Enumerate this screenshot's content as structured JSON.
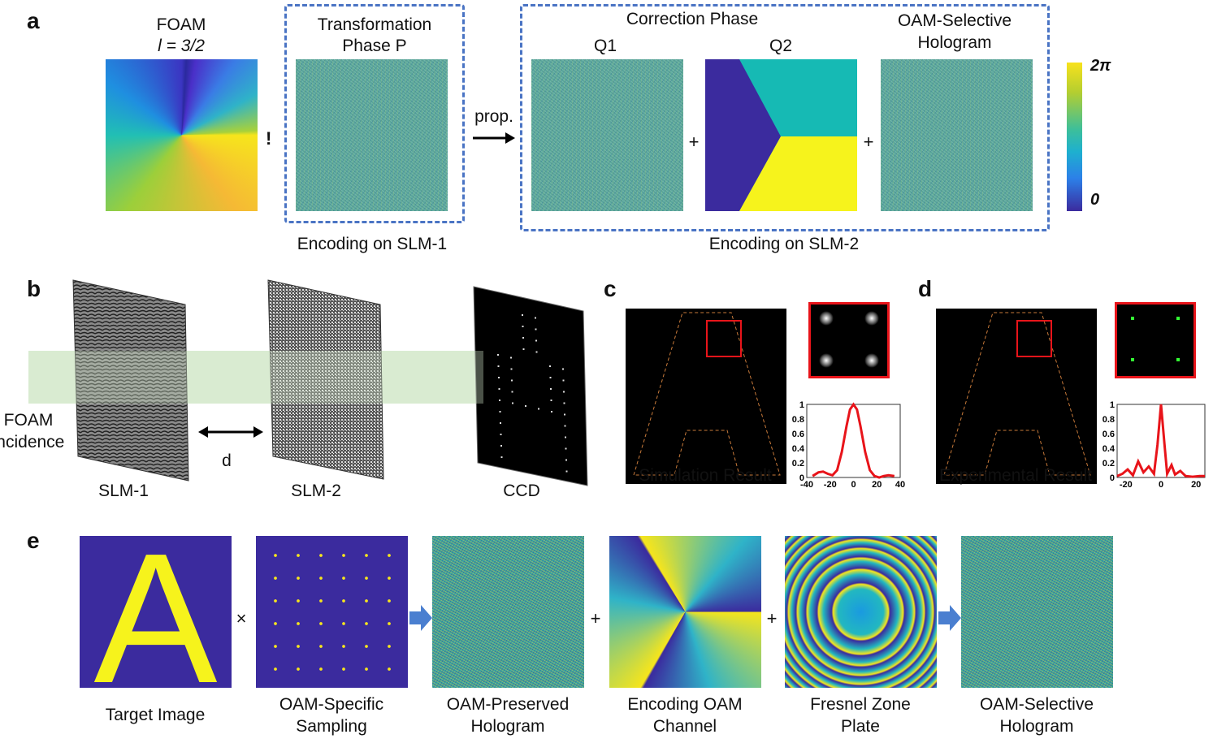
{
  "panel_a": {
    "label": "a",
    "foam_title": "FOAM",
    "foam_l": "l = 3/2",
    "exclaim": "!",
    "transformation_title_1": "Transformation",
    "transformation_title_2": "Phase P",
    "encoding_slm1": "Encoding on SLM-1",
    "prop": "prop.",
    "correction_title": "Correction Phase",
    "q1": "Q1",
    "q2": "Q2",
    "hologram_title_1": "OAM-Selective",
    "hologram_title_2": "Hologram",
    "plus": "+",
    "encoding_slm2": "Encoding on SLM-2",
    "colorbar_max": "2π",
    "colorbar_min": "0"
  },
  "panel_b": {
    "label": "b",
    "incidence_1": "FOAM",
    "incidence_2": "incidence",
    "distance": "d",
    "slm1": "SLM-1",
    "slm2": "SLM-2",
    "ccd": "CCD"
  },
  "panel_c": {
    "label": "c",
    "caption": "Simulation Result",
    "plot": {
      "yticks": [
        "1",
        "0.8",
        "0.6",
        "0.4",
        "0.2",
        "0"
      ],
      "xticks": [
        "-40",
        "-20",
        "0",
        "20",
        "40"
      ],
      "xlim": [
        -40,
        40
      ],
      "ylim": [
        0,
        1
      ],
      "points": [
        [
          -35,
          0.02
        ],
        [
          -30,
          0.07
        ],
        [
          -26,
          0.08
        ],
        [
          -22,
          0.05
        ],
        [
          -18,
          0.03
        ],
        [
          -14,
          0.1
        ],
        [
          -10,
          0.35
        ],
        [
          -6,
          0.7
        ],
        [
          -3,
          0.93
        ],
        [
          0,
          1
        ],
        [
          3,
          0.93
        ],
        [
          6,
          0.7
        ],
        [
          10,
          0.35
        ],
        [
          14,
          0.1
        ],
        [
          18,
          0.02
        ],
        [
          22,
          0.0
        ],
        [
          26,
          0.02
        ],
        [
          30,
          0.03
        ],
        [
          35,
          0.02
        ]
      ]
    }
  },
  "panel_d": {
    "label": "d",
    "caption": "Experimental Result",
    "plot": {
      "yticks": [
        "1",
        "0.8",
        "0.6",
        "0.4",
        "0.2",
        "0"
      ],
      "xticks": [
        "-20",
        "0",
        "20"
      ],
      "xlim": [
        -25,
        25
      ],
      "ylim": [
        0,
        1
      ],
      "points": [
        [
          -25,
          0.02
        ],
        [
          -22,
          0.05
        ],
        [
          -19,
          0.11
        ],
        [
          -16,
          0.03
        ],
        [
          -13,
          0.22
        ],
        [
          -10,
          0.07
        ],
        [
          -7,
          0.15
        ],
        [
          -4,
          0.05
        ],
        [
          -2,
          0.45
        ],
        [
          0,
          1
        ],
        [
          2,
          0.45
        ],
        [
          3.5,
          0.05
        ],
        [
          6,
          0.17
        ],
        [
          8,
          0.04
        ],
        [
          11,
          0.09
        ],
        [
          14,
          0.02
        ],
        [
          18,
          0.01
        ],
        [
          22,
          0.02
        ],
        [
          25,
          0.02
        ]
      ]
    }
  },
  "panel_e": {
    "label": "e",
    "items": [
      "Target Image",
      "OAM-Specific\nSampling",
      "OAM-Preserved\nHologram",
      "Encoding OAM\nChannel",
      "Fresnel Zone\nPlate",
      "OAM-Selective\nHologram"
    ],
    "times": "×",
    "plus": "+",
    "letter": "A"
  },
  "colors": {
    "accent_dash": "#4a74c4",
    "curve": "#e8141a",
    "indigo": "#3b2b9e",
    "yellow": "#f6f31c"
  }
}
